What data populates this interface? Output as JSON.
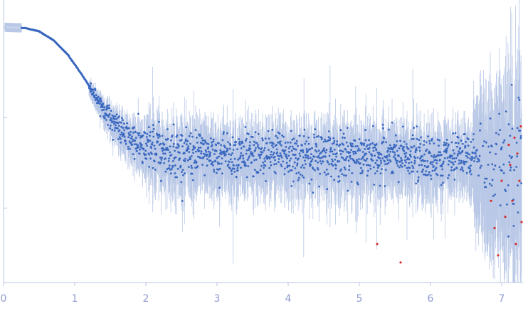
{
  "chart_data": {
    "type": "scatter",
    "title": "",
    "xlabel": "",
    "ylabel": "",
    "xlim": [
      0,
      7.3
    ],
    "y_scale": "log",
    "y_ticks_labeled": false,
    "grid": false,
    "legend": "none",
    "x_ticks": [
      {
        "value": 0,
        "label": "0"
      },
      {
        "value": 1,
        "label": "1"
      },
      {
        "value": 2,
        "label": "2"
      },
      {
        "value": 3,
        "label": "3"
      },
      {
        "value": 4,
        "label": "4"
      },
      {
        "value": 5,
        "label": "5"
      },
      {
        "value": 6,
        "label": "6"
      },
      {
        "value": 7,
        "label": "7"
      }
    ],
    "colors": {
      "points": "#3a68c0",
      "error_bars": "#b9c8e6",
      "outliers": "#d43030",
      "axis": "#b8c6e4",
      "tick_labels": "#8e9bd1"
    },
    "curve_profile": [
      {
        "x": 0.0,
        "y": 1.0
      },
      {
        "x": 0.3,
        "y": 0.98
      },
      {
        "x": 0.5,
        "y": 0.9
      },
      {
        "x": 0.7,
        "y": 0.72
      },
      {
        "x": 0.9,
        "y": 0.5
      },
      {
        "x": 1.1,
        "y": 0.3
      },
      {
        "x": 1.3,
        "y": 0.17
      },
      {
        "x": 1.5,
        "y": 0.1
      },
      {
        "x": 1.7,
        "y": 0.065
      },
      {
        "x": 2.0,
        "y": 0.045
      },
      {
        "x": 2.5,
        "y": 0.04
      },
      {
        "x": 7.3,
        "y": 0.035
      }
    ],
    "outlier_points": [
      {
        "x": 5.25,
        "y": 0.004
      },
      {
        "x": 5.58,
        "y": 0.0025
      },
      {
        "x": 6.85,
        "y": 0.012
      },
      {
        "x": 6.9,
        "y": 0.006
      },
      {
        "x": 6.95,
        "y": 0.003
      },
      {
        "x": 7.0,
        "y": 0.02
      },
      {
        "x": 7.05,
        "y": 0.008
      },
      {
        "x": 7.1,
        "y": 0.05
      },
      {
        "x": 7.12,
        "y": 0.03
      },
      {
        "x": 7.15,
        "y": 0.012
      },
      {
        "x": 7.18,
        "y": 0.06
      },
      {
        "x": 7.2,
        "y": 0.004
      },
      {
        "x": 7.22,
        "y": 0.04
      },
      {
        "x": 7.25,
        "y": 0.02
      },
      {
        "x": 7.27,
        "y": 0.08
      },
      {
        "x": 7.28,
        "y": 0.007
      }
    ]
  }
}
